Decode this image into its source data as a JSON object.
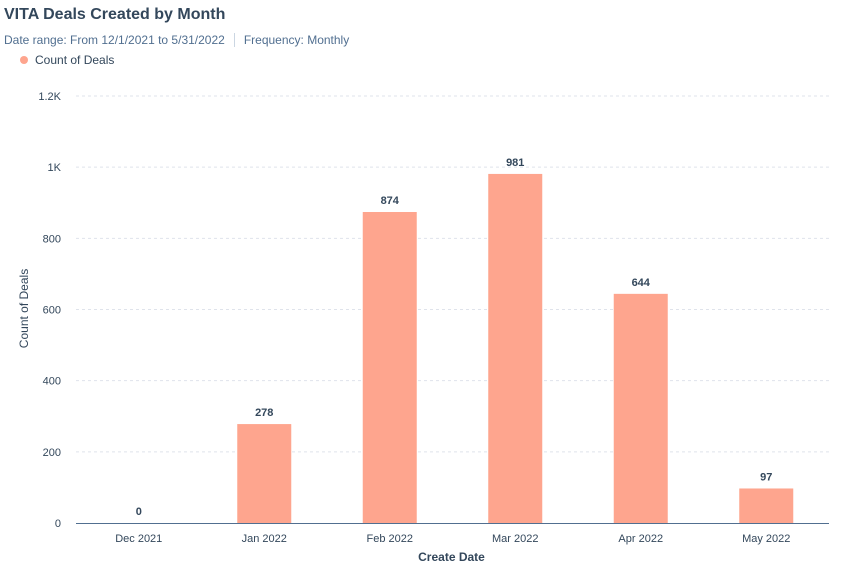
{
  "header": {
    "title": "VITA Deals Created by Month",
    "date_range": "Date range: From 12/1/2021 to 5/31/2022",
    "frequency": "Frequency: Monthly"
  },
  "legend": {
    "label": "Count of Deals"
  },
  "chart_data": {
    "type": "bar",
    "categories": [
      "Dec 2021",
      "Jan 2022",
      "Feb 2022",
      "Mar 2022",
      "Apr 2022",
      "May 2022"
    ],
    "series": [
      {
        "name": "Count of Deals",
        "values": [
          0,
          278,
          874,
          981,
          644,
          97
        ],
        "color": "#fea58e"
      }
    ],
    "data_labels": [
      "0",
      "278",
      "874",
      "981",
      "644",
      "97"
    ],
    "xlabel": "Create Date",
    "ylabel": "Count of Deals",
    "ylim": [
      0,
      1200
    ],
    "yticks": [
      0,
      200,
      400,
      600,
      800,
      1000,
      1200
    ],
    "ytick_labels": [
      "0",
      "200",
      "400",
      "600",
      "800",
      "1K",
      "1.2K"
    ],
    "grid": true,
    "legend_position": "top-left"
  }
}
